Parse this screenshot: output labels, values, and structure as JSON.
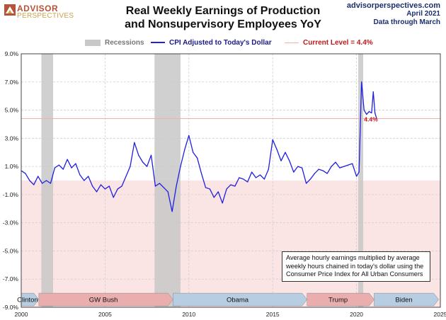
{
  "header": {
    "logo_line1": "ADVISOR",
    "logo_line2": "PERSPECTIVES",
    "title_line1": "Real Weekly Earnings of Production",
    "title_line2": "and Nonsupervisory Employees YoY",
    "site": "advisorperspectives.com",
    "date": "April 2021",
    "data_through": "Data through March"
  },
  "legend": {
    "recessions": "Recessions",
    "cpi": "CPI Adjusted to Today's Dollar",
    "current": "Current Level = 4.4%"
  },
  "note": "Average hourly earnings multiplied by average weekly hours chained in today's dollar using the Consumer Price Index for All Urban Consumers",
  "colors": {
    "line": "#1f1fe0",
    "recession": "#c8c8c8",
    "negative_zone": "#fbe4e4",
    "current_level": "#f0b0b0",
    "current_label": "#c0181a",
    "president_box": "#b7cde2",
    "president_box_alt": "#eaaeae"
  },
  "chart_data": {
    "type": "line",
    "title": "Real Weekly Earnings of Production and Nonsupervisory Employees YoY",
    "xlabel": "",
    "ylabel": "",
    "xlim": [
      2000,
      2025
    ],
    "ylim": [
      -9,
      9
    ],
    "grid": true,
    "legend_position": "top",
    "y_ticks": [
      9,
      7,
      5,
      3,
      1,
      -1,
      -3,
      -5,
      -7,
      -9
    ],
    "y_tick_labels": [
      "9.0%",
      "7.0%",
      "5.0%",
      "3.0%",
      "1.0%",
      "-1.0%",
      "-3.0%",
      "-5.0%",
      "-7.0%",
      "-9.0%"
    ],
    "x_ticks": [
      2000,
      2005,
      2010,
      2015,
      2020,
      2025
    ],
    "x_tick_labels": [
      "2000",
      "2005",
      "2010",
      "2015",
      "2020",
      "2025"
    ],
    "current_level": 4.4,
    "current_label": "4.4%",
    "recessions": [
      [
        2001.2,
        2001.9
      ],
      [
        2007.95,
        2009.5
      ],
      [
        2020.1,
        2020.4
      ]
    ],
    "presidents": [
      {
        "name": "Clinton",
        "start": 2000.0,
        "end": 2001.05,
        "color": "#b7cde2"
      },
      {
        "name": "GW Bush",
        "start": 2001.05,
        "end": 2009.05,
        "color": "#eaaeae"
      },
      {
        "name": "Obama",
        "start": 2009.05,
        "end": 2017.05,
        "color": "#b7cde2"
      },
      {
        "name": "Trump",
        "start": 2017.05,
        "end": 2021.05,
        "color": "#eaaeae"
      },
      {
        "name": "Biden",
        "start": 2021.05,
        "end": 2024.9,
        "color": "#b7cde2"
      }
    ],
    "series": [
      {
        "name": "CPI Adjusted to Today's Dollar",
        "x": [
          2000.0,
          2000.25,
          2000.5,
          2000.75,
          2001.0,
          2001.25,
          2001.5,
          2001.75,
          2002.0,
          2002.25,
          2002.5,
          2002.75,
          2003.0,
          2003.25,
          2003.5,
          2003.75,
          2004.0,
          2004.25,
          2004.5,
          2004.75,
          2005.0,
          2005.25,
          2005.5,
          2005.75,
          2006.0,
          2006.25,
          2006.5,
          2006.75,
          2007.0,
          2007.25,
          2007.5,
          2007.75,
          2008.0,
          2008.25,
          2008.5,
          2008.75,
          2009.0,
          2009.25,
          2009.5,
          2009.75,
          2010.0,
          2010.25,
          2010.5,
          2010.75,
          2011.0,
          2011.25,
          2011.5,
          2011.75,
          2012.0,
          2012.25,
          2012.5,
          2012.75,
          2013.0,
          2013.25,
          2013.5,
          2013.75,
          2014.0,
          2014.25,
          2014.5,
          2014.75,
          2015.0,
          2015.25,
          2015.5,
          2015.75,
          2016.0,
          2016.25,
          2016.5,
          2016.75,
          2017.0,
          2017.25,
          2017.5,
          2017.75,
          2018.0,
          2018.25,
          2018.5,
          2018.75,
          2019.0,
          2019.25,
          2019.5,
          2019.75,
          2020.0,
          2020.15,
          2020.3,
          2020.45,
          2020.6,
          2020.75,
          2020.9,
          2021.0,
          2021.1,
          2021.2
        ],
        "values": [
          0.7,
          0.5,
          0.0,
          -0.3,
          0.3,
          -0.2,
          0.0,
          -0.2,
          0.9,
          1.1,
          0.8,
          1.5,
          0.9,
          1.2,
          0.4,
          0.0,
          0.3,
          -0.4,
          -0.8,
          -0.3,
          -0.6,
          -0.4,
          -1.2,
          -0.6,
          -0.4,
          0.3,
          1.0,
          2.7,
          1.8,
          1.3,
          1.0,
          1.8,
          -0.4,
          -0.2,
          -0.5,
          -0.8,
          -2.2,
          -0.4,
          1.0,
          2.2,
          3.2,
          2.0,
          1.6,
          0.5,
          -0.5,
          -0.6,
          -1.2,
          -0.8,
          -1.6,
          -0.6,
          -0.3,
          -0.4,
          0.2,
          0.1,
          -0.1,
          0.6,
          0.2,
          0.4,
          0.1,
          0.8,
          2.9,
          2.2,
          1.4,
          2.0,
          1.4,
          0.6,
          1.0,
          0.9,
          -0.2,
          0.1,
          0.5,
          0.8,
          0.7,
          0.5,
          1.0,
          1.3,
          0.9,
          1.0,
          1.1,
          1.2,
          0.3,
          0.6,
          7.0,
          5.0,
          4.7,
          4.9,
          4.8,
          6.3,
          4.8,
          4.4
        ]
      }
    ]
  },
  "presidents_labels": [
    "Clinton",
    "GW Bush",
    "Obama",
    "Trump",
    "Biden"
  ]
}
